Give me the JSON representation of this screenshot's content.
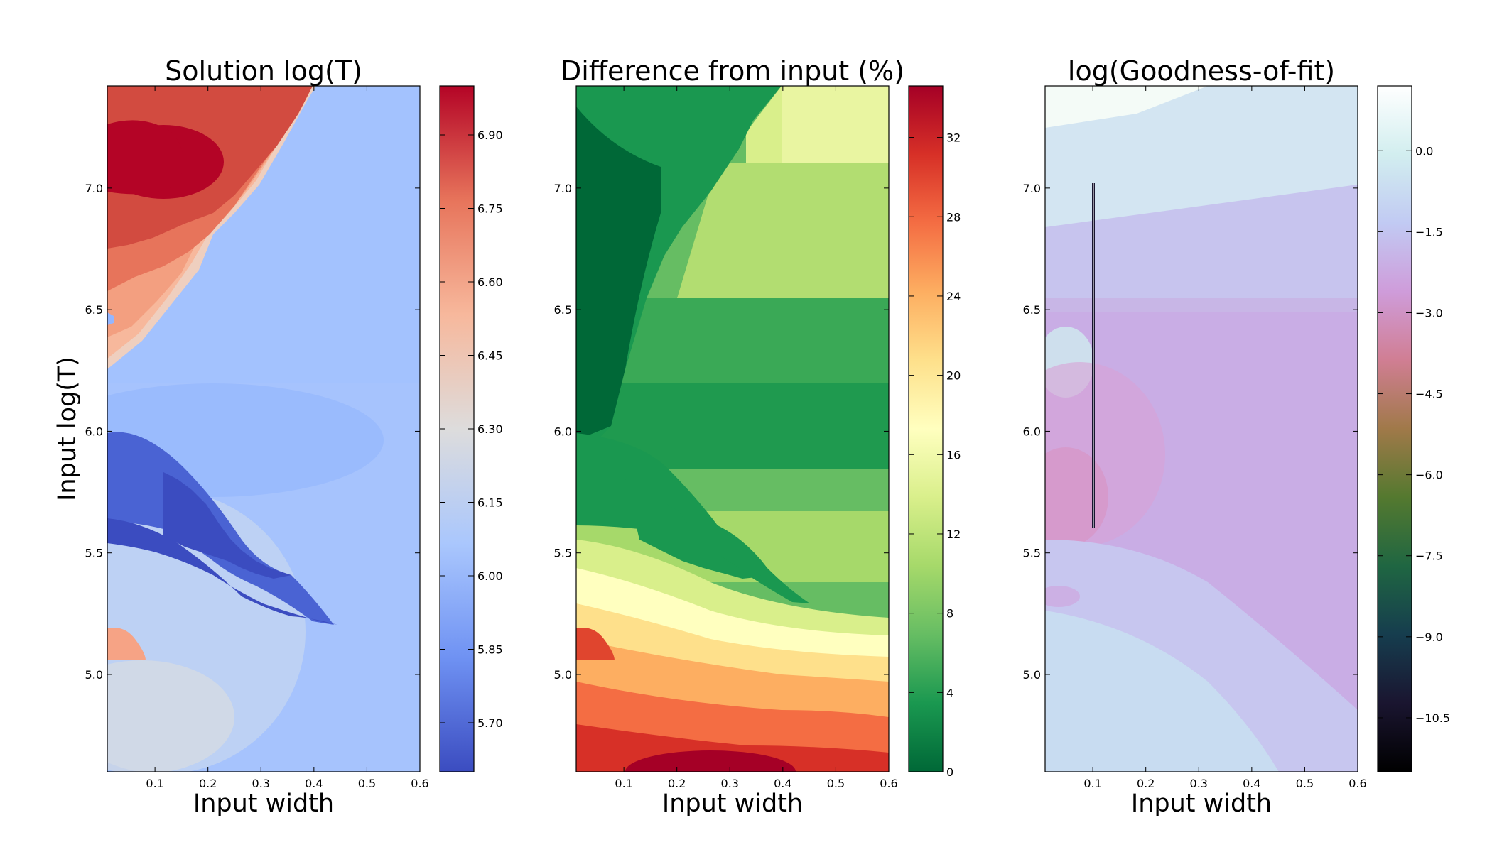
{
  "chart_data": [
    {
      "type": "heatmap",
      "title": "Solution log(T)",
      "xlabel": "Input width",
      "ylabel": "Input log(T)",
      "xlim": [
        0.01,
        0.6
      ],
      "ylim": [
        4.6,
        7.42
      ],
      "x_ticks": [
        "0.1",
        "0.2",
        "0.3",
        "0.4",
        "0.5",
        "0.6"
      ],
      "y_ticks": [
        "5.0",
        "5.5",
        "6.0",
        "6.5",
        "7.0"
      ],
      "colormap": "coolwarm",
      "colorbar": {
        "range": [
          5.6,
          7.0
        ],
        "ticks": [
          "5.70",
          "5.85",
          "6.00",
          "6.15",
          "6.30",
          "6.45",
          "6.60",
          "6.75",
          "6.90"
        ],
        "colors": [
          "#3b4cc0",
          "#6f92f3",
          "#aac7fd",
          "#dddcdc",
          "#f7b89c",
          "#e7745b",
          "#b40426"
        ]
      }
    },
    {
      "type": "heatmap",
      "title": "Difference from input (%)",
      "xlabel": "Input width",
      "ylabel": "",
      "xlim": [
        0.01,
        0.6
      ],
      "ylim": [
        4.6,
        7.42
      ],
      "x_ticks": [
        "0.1",
        "0.2",
        "0.3",
        "0.4",
        "0.5",
        "0.6"
      ],
      "y_ticks": [
        "5.0",
        "5.5",
        "6.0",
        "6.5",
        "7.0"
      ],
      "colormap": "RdYlGn_r",
      "colorbar": {
        "range": [
          0,
          34.6
        ],
        "ticks": [
          "0",
          "4",
          "8",
          "12",
          "16",
          "20",
          "24",
          "28",
          "32"
        ],
        "colors": [
          "#006837",
          "#1a9850",
          "#66bd63",
          "#a6d96a",
          "#d9ef8b",
          "#ffffbf",
          "#fee08b",
          "#fdae61",
          "#f46d43",
          "#d73027",
          "#a50026"
        ]
      }
    },
    {
      "type": "heatmap",
      "title": "log(Goodness-of-fit)",
      "xlabel": "Input width",
      "ylabel": "",
      "xlim": [
        0.01,
        0.6
      ],
      "ylim": [
        4.6,
        7.42
      ],
      "x_ticks": [
        "0.1",
        "0.2",
        "0.3",
        "0.4",
        "0.5",
        "0.6"
      ],
      "y_ticks": [
        "5.0",
        "5.5",
        "6.0",
        "6.5",
        "7.0"
      ],
      "colormap": "cubehelix",
      "colorbar": {
        "range": [
          -11.5,
          1.2
        ],
        "ticks": [
          "0.0",
          "−1.5",
          "−3.0",
          "−4.5",
          "−6.0",
          "−7.5",
          "−9.0",
          "−10.5"
        ],
        "colors": [
          "#000000",
          "#1a1530",
          "#163d4e",
          "#1f6642",
          "#54792f",
          "#a07949",
          "#d07e93",
          "#cf9cda",
          "#c1caf3",
          "#d2eeef",
          "#ffffff"
        ]
      }
    }
  ]
}
